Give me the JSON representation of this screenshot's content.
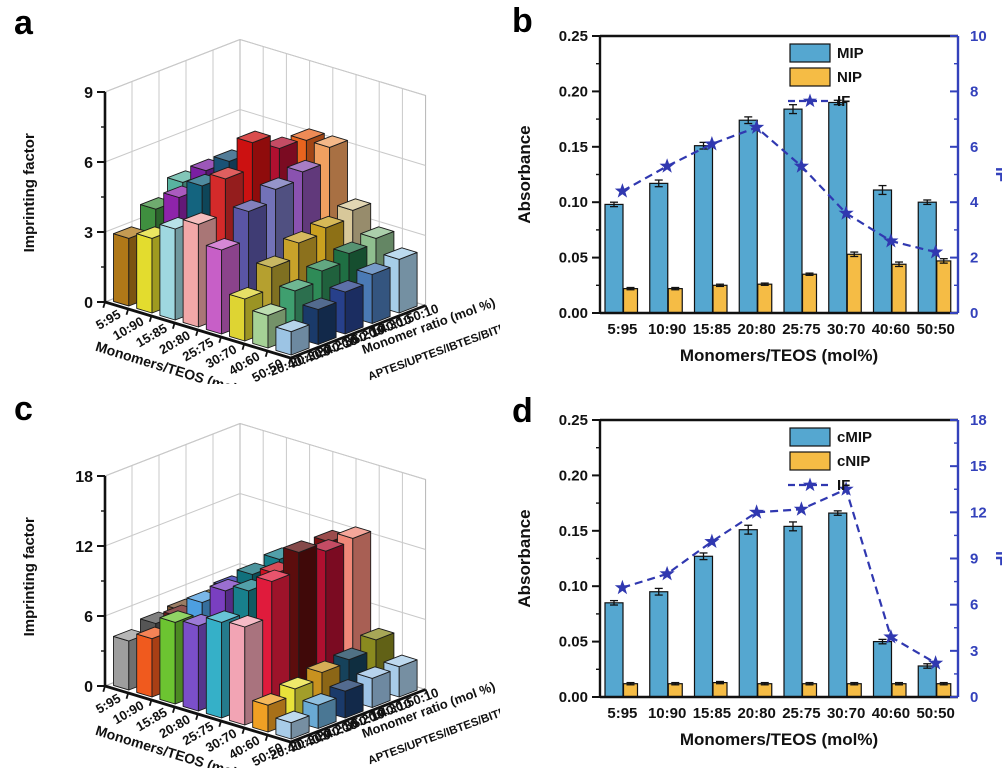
{
  "chart_data": [
    {
      "panel": "a",
      "type": "bar",
      "variant": "3d",
      "zlabel": "Imprinting factor",
      "zlim": [
        0,
        9
      ],
      "zticks": [
        0,
        3,
        6,
        9
      ],
      "xlabel": "Monomers/TEOS (mol %)",
      "categories": [
        "5:95",
        "10:90",
        "15:85",
        "20:80",
        "25:75",
        "30:70",
        "40:60",
        "50:50"
      ],
      "depth_axis_label_line1": "Monomer ratio (mol %)",
      "depth_axis_label_line2": "APTES/UPTES/IBTES/BITES",
      "depth_categories": [
        "20:40:40:0",
        "20:30:40:10",
        "20:20:50:10",
        "30:20:40:10",
        "10:30:50:10"
      ],
      "series": [
        {
          "name": "20:40:40:0",
          "values": [
            2.9,
            3.2,
            3.9,
            4.4,
            3.6,
            1.8,
            1.4,
            1.0
          ],
          "colors": [
            "#b07818",
            "#e3dc2e",
            "#9fd8e0",
            "#f2a8a8",
            "#c75fc7",
            "#ded433",
            "#a5d196",
            "#9cc4e4"
          ]
        },
        {
          "name": "20:30:40:10",
          "values": [
            3.7,
            4.5,
            5.3,
            5.9,
            4.8,
            2.7,
            2.0,
            1.5
          ],
          "colors": [
            "#3f8f3f",
            "#8e24aa",
            "#14647f",
            "#d42a2a",
            "#5a55a5",
            "#b5a02f",
            "#3f9f6f",
            "#1a3a6a"
          ]
        },
        {
          "name": "20:20:50:10",
          "values": [
            4.4,
            5.2,
            5.9,
            7.0,
            5.3,
            3.3,
            2.4,
            1.8
          ],
          "colors": [
            "#58b3a0",
            "#7b1fa2",
            "#1a5276",
            "#cc1111",
            "#7272b8",
            "#c8a22a",
            "#2e8b57",
            "#27408b"
          ]
        },
        {
          "name": "30:20:40:10",
          "values": [
            3.9,
            4.8,
            5.7,
            6.3,
            5.6,
            3.5,
            2.7,
            2.1
          ],
          "colors": [
            "#cc6a1a",
            "#8055cc",
            "#262699",
            "#b01030",
            "#8a52b0",
            "#caa01f",
            "#1f6f43",
            "#4a7ab5"
          ]
        },
        {
          "name": "10:30:50:10",
          "values": [
            3.4,
            4.2,
            5.0,
            6.2,
            6.2,
            3.8,
            2.9,
            2.3
          ],
          "colors": [
            "#e0852a",
            "#9a7ad0",
            "#aeb4dc",
            "#e8641e",
            "#f0a060",
            "#d8c89a",
            "#8fbf8f",
            "#a6cee8"
          ]
        }
      ]
    },
    {
      "panel": "b",
      "type": "bar",
      "variant": "2d-bar-line",
      "categories": [
        "5:95",
        "10:90",
        "15:85",
        "20:80",
        "25:75",
        "30:70",
        "40:60",
        "50:50"
      ],
      "xlabel": "Monomers/TEOS (mol%)",
      "ylabel": "Absorbance",
      "ylim": [
        0,
        0.25
      ],
      "ytick_labels": [
        "0.00",
        "0.05",
        "0.10",
        "0.15",
        "0.20",
        "0.25"
      ],
      "y2label": "IF",
      "y2lim": [
        0,
        10
      ],
      "y2ticks": [
        0,
        2,
        4,
        6,
        8,
        10
      ],
      "y2color": "#3341bb",
      "bar_series": [
        {
          "name": "MIP",
          "color": "#55a7d0",
          "values": [
            0.098,
            0.117,
            0.151,
            0.174,
            0.184,
            0.19,
            0.111,
            0.1
          ],
          "errors": [
            0.002,
            0.003,
            0.003,
            0.003,
            0.004,
            0.002,
            0.004,
            0.002
          ]
        },
        {
          "name": "NIP",
          "color": "#f5bc45",
          "values": [
            0.022,
            0.022,
            0.025,
            0.026,
            0.035,
            0.053,
            0.044,
            0.047
          ],
          "errors": [
            0.001,
            0.001,
            0.001,
            0.001,
            0.001,
            0.002,
            0.002,
            0.002
          ]
        }
      ],
      "line_series": {
        "name": "IF",
        "color": "#3038b0",
        "marker": "star",
        "values": [
          4.4,
          5.3,
          6.1,
          6.7,
          5.3,
          3.6,
          2.6,
          2.2
        ]
      },
      "legend": [
        "MIP",
        "NIP",
        "IF"
      ],
      "legend_position": "top-right",
      "grid": false
    },
    {
      "panel": "c",
      "type": "bar",
      "variant": "3d",
      "zlabel": "Imprinting factor",
      "zlim": [
        0,
        18
      ],
      "zticks": [
        0,
        6,
        12,
        18
      ],
      "xlabel": "Monomers/TEOS (mol %)",
      "categories": [
        "5:95",
        "10:90",
        "15:85",
        "20:80",
        "25:75",
        "30:70",
        "40:60",
        "50:50"
      ],
      "depth_axis_label_line1": "Monomer ratio (mol %)",
      "depth_axis_label_line2": "APTES/UPTES/IBTES/BITES",
      "depth_categories": [
        "20:40:40:0",
        "20:30:40:10",
        "20:20:50:10",
        "30:20:40:10",
        "10:30:50:10"
      ],
      "series": [
        {
          "name": "20:40:40:0",
          "values": [
            4.2,
            5.0,
            7.0,
            7.3,
            8.2,
            8.4,
            2.3,
            1.4
          ],
          "colors": [
            "#9e9e9e",
            "#f05a1e",
            "#6cc431",
            "#7a4fc9",
            "#35b0c8",
            "#f2a4b4",
            "#f0a024",
            "#a8cce8"
          ]
        },
        {
          "name": "20:30:40:10",
          "values": [
            4.8,
            6.0,
            7.8,
            9.4,
            10.0,
            11.4,
            2.8,
            2.0
          ],
          "colors": [
            "#555555",
            "#6b1a1a",
            "#4d9fe0",
            "#7a3fc0",
            "#18808c",
            "#e01b3c",
            "#e8e23a",
            "#6aaad4"
          ]
        },
        {
          "name": "20:20:50:10",
          "values": [
            5.0,
            6.4,
            8.2,
            9.9,
            10.6,
            13.0,
            3.3,
            2.3
          ],
          "colors": [
            "#7a5230",
            "#98751e",
            "#2a2ab0",
            "#10707c",
            "#cc1122",
            "#5c0d0d",
            "#c8921f",
            "#1a3a6a"
          ]
        },
        {
          "name": "30:20:40:10",
          "values": [
            4.7,
            6.1,
            8.0,
            10.3,
            11.3,
            12.2,
            3.5,
            2.5
          ],
          "colors": [
            "#5a3a1a",
            "#8b6914",
            "#3a3ac0",
            "#18808c",
            "#8b0000",
            "#b01030",
            "#16425b",
            "#9dc3e6"
          ]
        },
        {
          "name": "10:30:50:10",
          "values": [
            4.4,
            5.6,
            7.5,
            9.7,
            11.5,
            12.4,
            4.3,
            2.6
          ],
          "colors": [
            "#b05a2a",
            "#cc6a1a",
            "#3aa03a",
            "#2255cc",
            "#7a1010",
            "#f08878",
            "#8a8a1f",
            "#a8cce8"
          ]
        }
      ]
    },
    {
      "panel": "d",
      "type": "bar",
      "variant": "2d-bar-line",
      "categories": [
        "5:95",
        "10:90",
        "15:85",
        "20:80",
        "25:75",
        "30:70",
        "40:60",
        "50:50"
      ],
      "xlabel": "Monomers/TEOS (mol%)",
      "ylabel": "Absorbance",
      "ylim": [
        0,
        0.25
      ],
      "ytick_labels": [
        "0.00",
        "0.05",
        "0.10",
        "0.15",
        "0.20",
        "0.25"
      ],
      "y2label": "IF",
      "y2lim": [
        0,
        18
      ],
      "y2ticks": [
        0,
        3,
        6,
        9,
        12,
        15,
        18
      ],
      "y2color": "#3341bb",
      "bar_series": [
        {
          "name": "cMIP",
          "color": "#55a7d0",
          "values": [
            0.085,
            0.095,
            0.127,
            0.151,
            0.154,
            0.166,
            0.05,
            0.028
          ],
          "errors": [
            0.002,
            0.003,
            0.003,
            0.004,
            0.004,
            0.002,
            0.002,
            0.002
          ]
        },
        {
          "name": "cNIP",
          "color": "#f5bc45",
          "values": [
            0.012,
            0.012,
            0.013,
            0.012,
            0.012,
            0.012,
            0.012,
            0.012
          ],
          "errors": [
            0.001,
            0.001,
            0.001,
            0.001,
            0.001,
            0.001,
            0.001,
            0.001
          ]
        }
      ],
      "line_series": {
        "name": "IF",
        "color": "#3038b0",
        "marker": "star",
        "values": [
          7.1,
          8.0,
          10.1,
          12.0,
          12.2,
          13.5,
          3.9,
          2.2
        ]
      },
      "legend": [
        "cMIP",
        "cNIP",
        "IF"
      ],
      "legend_position": "top-right",
      "grid": false
    }
  ]
}
